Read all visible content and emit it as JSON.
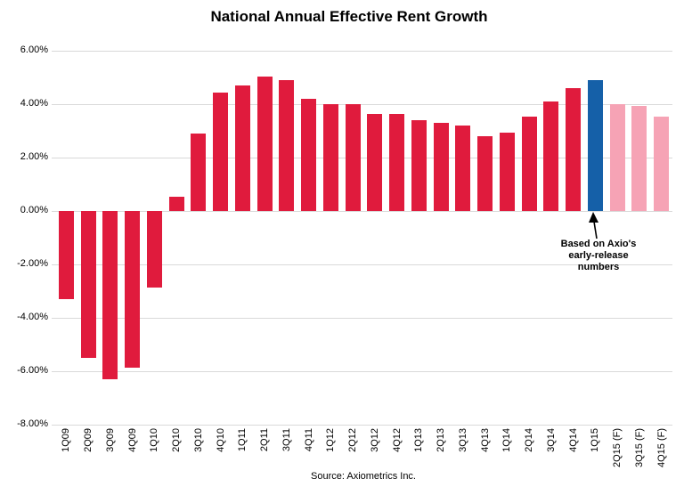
{
  "title": "National Annual Effective Rent Growth",
  "source_note": "Source: Axiometrics Inc.",
  "annotation": {
    "lines": [
      "Based on Axio's",
      "early-release",
      "numbers"
    ],
    "target": "1Q15"
  },
  "colors": {
    "bar_actual": "#e01b3d",
    "bar_early_release": "#1560a8",
    "bar_forecast": "#f6a3b5",
    "gridline": "#d9d9d9",
    "text": "#000000"
  },
  "chart_data": {
    "type": "bar",
    "title": "National Annual Effective Rent Growth",
    "xlabel": "",
    "ylabel": "",
    "grid": true,
    "legend": "none",
    "ylim": [
      -8,
      6
    ],
    "ytick_values": [
      6,
      4,
      2,
      0,
      -2,
      -4,
      -6,
      -8
    ],
    "ytick_labels": [
      "6.00%",
      "4.00%",
      "2.00%",
      "0.00%",
      "-2.00%",
      "-4.00%",
      "-6.00%",
      "-8.00%"
    ],
    "categories": [
      "1Q09",
      "2Q09",
      "3Q09",
      "4Q09",
      "1Q10",
      "2Q10",
      "3Q10",
      "4Q10",
      "1Q11",
      "2Q11",
      "3Q11",
      "4Q11",
      "1Q12",
      "2Q12",
      "3Q12",
      "4Q12",
      "1Q13",
      "2Q13",
      "3Q13",
      "4Q13",
      "1Q14",
      "2Q14",
      "3Q14",
      "4Q14",
      "1Q15",
      "2Q15 (F)",
      "3Q15 (F)",
      "4Q15 (F)"
    ],
    "values": [
      -3.3,
      -5.5,
      -6.3,
      -5.85,
      -2.85,
      0.55,
      2.9,
      4.45,
      4.7,
      5.05,
      4.9,
      4.2,
      4.0,
      4.0,
      3.65,
      3.65,
      3.4,
      3.3,
      3.2,
      2.8,
      2.95,
      3.55,
      4.1,
      4.6,
      4.9,
      4.0,
      3.95,
      3.55
    ],
    "bar_roles": [
      "actual",
      "actual",
      "actual",
      "actual",
      "actual",
      "actual",
      "actual",
      "actual",
      "actual",
      "actual",
      "actual",
      "actual",
      "actual",
      "actual",
      "actual",
      "actual",
      "actual",
      "actual",
      "actual",
      "actual",
      "actual",
      "actual",
      "actual",
      "actual",
      "early_release",
      "forecast",
      "forecast",
      "forecast"
    ],
    "annotation": "Based on Axio's early-release numbers (points to 1Q15 bar)"
  }
}
